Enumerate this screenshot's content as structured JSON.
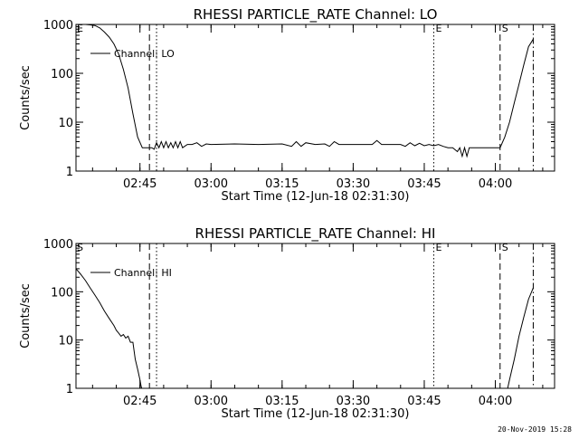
{
  "footer_date": "20-Nov-2019 15:28",
  "chart_data": [
    {
      "type": "line",
      "title": "RHESSI PARTICLE_RATE Channel: LO",
      "xlabel": "Start Time (12-Jun-18 02:31:30)",
      "ylabel": "Counts/sec",
      "y_scale": "log",
      "ylim": [
        1,
        1000
      ],
      "y_ticks": [
        "1",
        "10",
        "100",
        "1000"
      ],
      "xlim": [
        "02:31:30",
        "04:12:30"
      ],
      "x_ticks": [
        "02:45",
        "03:00",
        "03:15",
        "03:30",
        "03:45",
        "04:00"
      ],
      "legend": "Channel: LO",
      "legend_position": "top-left",
      "markers": [
        {
          "time": "02:47:00",
          "style": "dashed",
          "label": ""
        },
        {
          "time": "02:48:30",
          "style": "dotted",
          "label": ""
        },
        {
          "time": "03:47:00",
          "style": "dotted",
          "label": "E"
        },
        {
          "time": "04:01:00",
          "style": "dashed",
          "label": "S"
        },
        {
          "time": "04:08:00",
          "style": "dashdot",
          "label": ""
        }
      ],
      "corner_label": "E",
      "series": [
        {
          "x": [
            "02:31:30",
            "02:32:30",
            "02:33:30",
            "02:34:30",
            "02:35:30",
            "02:36:30",
            "02:37:30",
            "02:38:30",
            "02:39:30",
            "02:40:30",
            "02:41:30",
            "02:42:30",
            "02:43:30",
            "02:44:30",
            "02:45:30",
            "02:46:30",
            "02:47:00",
            "02:47:30",
            "02:48:00",
            "02:48:30",
            "02:49:00",
            "02:49:30",
            "02:50:00",
            "02:50:30",
            "02:51:00",
            "02:51:30",
            "02:52:00",
            "02:52:30",
            "02:53:00",
            "02:53:30",
            "02:54:00",
            "02:55:00",
            "02:56:00",
            "02:57:00",
            "02:58:00",
            "02:59:00",
            "03:00:00",
            "03:05:00",
            "03:10:00",
            "03:15:00",
            "03:17:00",
            "03:18:00",
            "03:19:00",
            "03:20:00",
            "03:22:00",
            "03:24:00",
            "03:25:00",
            "03:26:00",
            "03:27:00",
            "03:30:00",
            "03:34:00",
            "03:35:00",
            "03:36:00",
            "03:40:00",
            "03:41:00",
            "03:42:00",
            "03:43:00",
            "03:44:00",
            "03:45:00",
            "03:46:00",
            "03:47:00",
            "03:48:00",
            "03:49:00",
            "03:50:00",
            "03:51:00",
            "03:52:00",
            "03:52:30",
            "03:53:00",
            "03:53:30",
            "03:54:00",
            "03:54:30",
            "03:55:00",
            "03:56:00",
            "03:58:00",
            "04:01:00",
            "04:02:00",
            "04:03:00",
            "04:04:00",
            "04:05:00",
            "04:06:00",
            "04:07:00",
            "04:08:00"
          ],
          "y": [
            1000,
            1000,
            1000,
            980,
            950,
            850,
            700,
            550,
            400,
            250,
            120,
            50,
            15,
            5,
            3,
            3,
            3,
            3,
            2.8,
            3.8,
            3.0,
            4.0,
            3.0,
            4.0,
            3.0,
            3.8,
            3.0,
            4.0,
            3.0,
            4.0,
            3.0,
            3.5,
            3.5,
            3.8,
            3.2,
            3.6,
            3.5,
            3.6,
            3.5,
            3.6,
            3.2,
            4.0,
            3.2,
            3.8,
            3.5,
            3.6,
            3.2,
            4.0,
            3.5,
            3.5,
            3.5,
            4.2,
            3.5,
            3.5,
            3.2,
            3.8,
            3.3,
            3.7,
            3.3,
            3.5,
            3.3,
            3.5,
            3.2,
            3.0,
            3.0,
            2.5,
            3.0,
            2.0,
            3.0,
            2.0,
            3.0,
            3.0,
            3.0,
            3.0,
            3.0,
            5,
            10,
            25,
            60,
            150,
            350,
            500
          ]
        }
      ]
    },
    {
      "type": "line",
      "title": "RHESSI PARTICLE_RATE Channel: HI",
      "xlabel": "Start Time (12-Jun-18 02:31:30)",
      "ylabel": "Counts/sec",
      "y_scale": "log",
      "ylim": [
        1,
        1000
      ],
      "y_ticks": [
        "1",
        "10",
        "100",
        "1000"
      ],
      "xlim": [
        "02:31:30",
        "04:12:30"
      ],
      "x_ticks": [
        "02:45",
        "03:00",
        "03:15",
        "03:30",
        "03:45",
        "04:00"
      ],
      "legend": "Channel: HI",
      "legend_position": "top-left",
      "markers": [
        {
          "time": "02:47:00",
          "style": "dashed",
          "label": ""
        },
        {
          "time": "02:48:30",
          "style": "dotted",
          "label": ""
        },
        {
          "time": "03:47:00",
          "style": "dotted",
          "label": "E"
        },
        {
          "time": "04:01:00",
          "style": "dashed",
          "label": "S"
        },
        {
          "time": "04:08:00",
          "style": "dashdot",
          "label": ""
        }
      ],
      "corner_label": "S",
      "series": [
        {
          "x": [
            "02:31:30",
            "02:32:30",
            "02:33:30",
            "02:34:30",
            "02:35:30",
            "02:36:30",
            "02:37:30",
            "02:38:30",
            "02:39:30",
            "02:40:00",
            "02:40:30",
            "02:41:00",
            "02:41:30",
            "02:42:00",
            "02:42:30",
            "02:43:00",
            "02:43:30",
            "02:44:00",
            "02:44:30",
            "02:45:00",
            "02:45:15",
            "02:45:30"
          ],
          "y": [
            300,
            230,
            170,
            120,
            85,
            60,
            40,
            28,
            20,
            16,
            14,
            12,
            13,
            11,
            12,
            9,
            9,
            4,
            2.5,
            1.5,
            1.1,
            0.9
          ]
        },
        {
          "x": [
            "04:02:30",
            "04:03:00",
            "04:04:00",
            "04:05:00",
            "04:06:00",
            "04:07:00",
            "04:08:00"
          ],
          "y": [
            0.9,
            1.5,
            4,
            12,
            30,
            70,
            120
          ]
        }
      ]
    }
  ]
}
